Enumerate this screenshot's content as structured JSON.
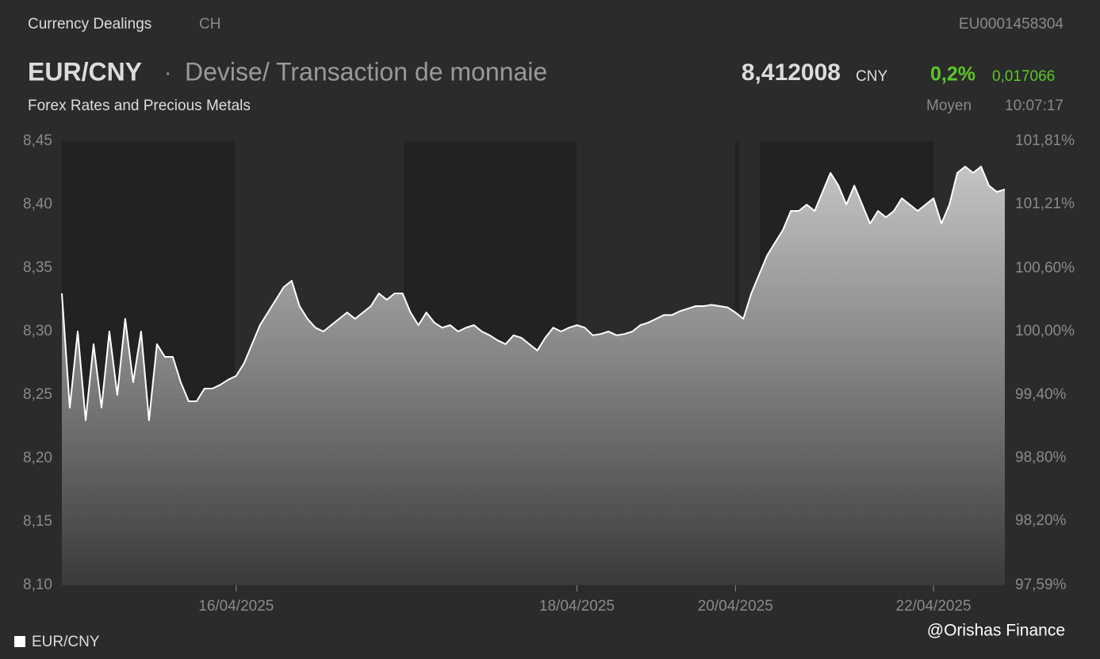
{
  "header": {
    "section": "Currency Dealings",
    "market": "CH",
    "isin": "EU0001458304",
    "pair": "EUR/CNY",
    "separator": "·",
    "description": "Devise/ Transaction de monnaie",
    "price": "8,412008",
    "currency": "CNY",
    "change_pct": "0,2%",
    "change_abs": "0,017066",
    "subtitle": "Forex Rates and Precious Metals",
    "price_type": "Moyen",
    "time": "10:07:17"
  },
  "chart_data": {
    "type": "area",
    "categories": [
      null,
      null,
      null,
      null,
      null,
      null,
      null,
      null,
      null,
      null,
      null,
      null,
      null,
      null,
      null,
      null,
      null,
      null,
      null,
      null,
      null,
      null,
      "16/04/2025",
      null,
      null,
      null,
      null,
      null,
      null,
      null,
      null,
      null,
      null,
      null,
      null,
      null,
      null,
      null,
      null,
      null,
      null,
      null,
      null,
      null,
      null,
      null,
      null,
      null,
      null,
      null,
      null,
      null,
      null,
      null,
      null,
      null,
      null,
      null,
      null,
      null,
      null,
      null,
      null,
      null,
      null,
      "18/04/2025",
      null,
      null,
      null,
      null,
      null,
      null,
      null,
      null,
      null,
      null,
      null,
      null,
      null,
      null,
      null,
      null,
      null,
      null,
      null,
      "20/04/2025",
      null,
      null,
      null,
      null,
      null,
      null,
      null,
      null,
      null,
      null,
      null,
      null,
      null,
      null,
      null,
      null,
      null,
      null,
      null,
      null,
      null,
      null,
      null,
      null,
      "22/04/2025",
      null,
      null,
      null,
      null,
      null,
      null,
      null,
      null,
      null
    ],
    "series": [
      {
        "name": "EUR/CNY",
        "color": "#ffffff",
        "values": [
          8.33,
          8.24,
          8.3,
          8.23,
          8.29,
          8.24,
          8.3,
          8.25,
          8.31,
          8.26,
          8.3,
          8.23,
          8.29,
          8.28,
          8.28,
          8.26,
          8.245,
          8.245,
          8.255,
          8.255,
          8.258,
          8.262,
          8.265,
          8.275,
          8.29,
          8.305,
          8.315,
          8.325,
          8.335,
          8.34,
          8.32,
          8.31,
          8.303,
          8.3,
          8.305,
          8.31,
          8.315,
          8.31,
          8.315,
          8.32,
          8.33,
          8.325,
          8.33,
          8.33,
          8.315,
          8.305,
          8.315,
          8.307,
          8.303,
          8.305,
          8.3,
          8.303,
          8.305,
          8.3,
          8.297,
          8.293,
          8.29,
          8.297,
          8.295,
          8.29,
          8.285,
          8.295,
          8.303,
          8.3,
          8.303,
          8.305,
          8.303,
          8.297,
          8.298,
          8.3,
          8.297,
          8.298,
          8.3,
          8.305,
          8.307,
          8.31,
          8.313,
          8.313,
          8.316,
          8.318,
          8.32,
          8.32,
          8.321,
          8.32,
          8.319,
          8.315,
          8.31,
          8.33,
          8.345,
          8.36,
          8.37,
          8.38,
          8.395,
          8.395,
          8.4,
          8.395,
          8.41,
          8.425,
          8.415,
          8.4,
          8.415,
          8.4,
          8.385,
          8.395,
          8.39,
          8.395,
          8.405,
          8.4,
          8.395,
          8.4,
          8.405,
          8.385,
          8.4,
          8.425,
          8.43,
          8.425,
          8.43,
          8.415,
          8.41,
          8.412
        ]
      }
    ],
    "ylim": [
      8.1,
      8.45
    ],
    "yticks": [
      {
        "value": 8.45,
        "label": "8,45"
      },
      {
        "value": 8.4,
        "label": "8,40"
      },
      {
        "value": 8.35,
        "label": "8,35"
      },
      {
        "value": 8.3,
        "label": "8,30"
      },
      {
        "value": 8.25,
        "label": "8,25"
      },
      {
        "value": 8.2,
        "label": "8,20"
      },
      {
        "value": 8.15,
        "label": "8,15"
      },
      {
        "value": 8.1,
        "label": "8,10"
      }
    ],
    "y2lim": [
      97.59,
      101.81
    ],
    "y2ticks": [
      {
        "value": 101.81,
        "label": "101,81%"
      },
      {
        "value": 101.21,
        "label": "101,21%"
      },
      {
        "value": 100.6,
        "label": "100,60%"
      },
      {
        "value": 100.0,
        "label": "100,00%"
      },
      {
        "value": 99.4,
        "label": "99,40%"
      },
      {
        "value": 98.8,
        "label": "98,80%"
      },
      {
        "value": 98.2,
        "label": "98,20%"
      },
      {
        "value": 97.59,
        "label": "97,59%"
      }
    ],
    "grid": false,
    "legend": "bottom-left"
  },
  "watermark": "@Orishas Finance"
}
